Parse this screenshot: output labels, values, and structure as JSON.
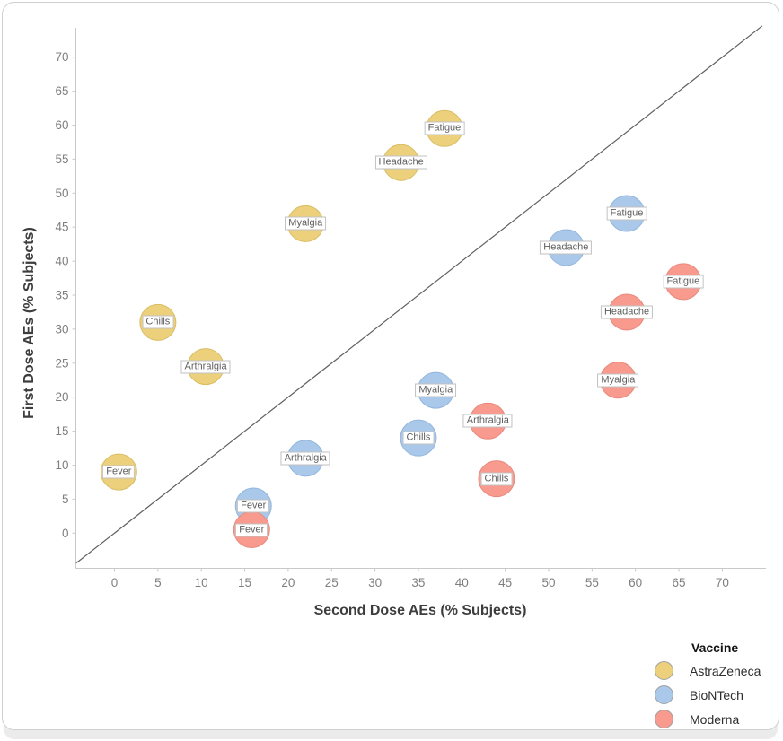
{
  "chart_data": {
    "type": "scatter",
    "xlabel": "Second Dose AEs (% Subjects)",
    "ylabel": "First Dose AEs (% Subjects)",
    "xticks": [
      0,
      5,
      10,
      15,
      20,
      25,
      30,
      35,
      40,
      45,
      50,
      55,
      60,
      65,
      70
    ],
    "yticks": [
      0,
      5,
      10,
      15,
      20,
      25,
      30,
      35,
      40,
      45,
      50,
      55,
      60,
      65,
      70
    ],
    "xlim": [
      -4.4,
      75.1
    ],
    "ylim": [
      -5.2,
      74.6
    ],
    "grid": false,
    "reference_line": "y = x (identity line)",
    "point_radius_px": 20,
    "legend": {
      "title": "Vaccine",
      "position": "bottom-right"
    },
    "series": [
      {
        "name": "AstraZeneca",
        "color": "#ecd07c",
        "border": "#d9bd63",
        "points": [
          {
            "label": "Fever",
            "x": 0.5,
            "y": 9
          },
          {
            "label": "Chills",
            "x": 5,
            "y": 31
          },
          {
            "label": "Arthralgia",
            "x": 10.5,
            "y": 24.5
          },
          {
            "label": "Myalgia",
            "x": 22,
            "y": 45.5
          },
          {
            "label": "Headache",
            "x": 33,
            "y": 54.5
          },
          {
            "label": "Fatigue",
            "x": 38,
            "y": 59.5
          }
        ]
      },
      {
        "name": "BioNTech",
        "color": "#a9c8ea",
        "border": "#93b6dc",
        "points": [
          {
            "label": "Fever",
            "x": 16,
            "y": 4
          },
          {
            "label": "Arthralgia",
            "x": 22,
            "y": 11
          },
          {
            "label": "Chills",
            "x": 35,
            "y": 14
          },
          {
            "label": "Myalgia",
            "x": 37,
            "y": 21
          },
          {
            "label": "Headache",
            "x": 52,
            "y": 42
          },
          {
            "label": "Fatigue",
            "x": 59,
            "y": 47
          }
        ]
      },
      {
        "name": "Moderna",
        "color": "#f89a8d",
        "border": "#e8897d",
        "points": [
          {
            "label": "Fever",
            "x": 15.8,
            "y": 0.5
          },
          {
            "label": "Chills",
            "x": 44,
            "y": 8
          },
          {
            "label": "Arthralgia",
            "x": 43,
            "y": 16.5
          },
          {
            "label": "Myalgia",
            "x": 58,
            "y": 22.5
          },
          {
            "label": "Headache",
            "x": 59,
            "y": 32.5
          },
          {
            "label": "Fatigue",
            "x": 65.5,
            "y": 37
          }
        ]
      }
    ]
  }
}
